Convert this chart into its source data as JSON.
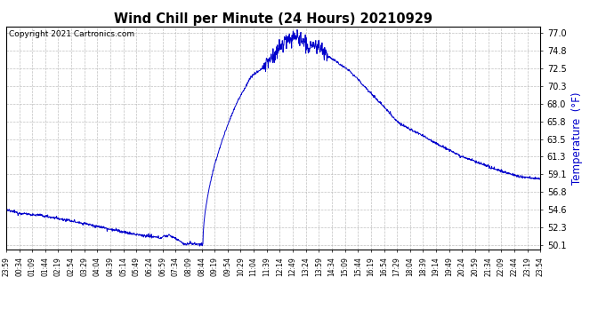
{
  "title": "Wind Chill per Minute (24 Hours) 20210929",
  "ylabel": "Temperature  (°F)",
  "copyright_text": "Copyright 2021 Cartronics.com",
  "line_color": "#0000cc",
  "ylabel_color": "#0000cc",
  "background_color": "#ffffff",
  "grid_color": "#b0b0b0",
  "yticks": [
    50.1,
    52.3,
    54.6,
    56.8,
    59.1,
    61.3,
    63.5,
    65.8,
    68.0,
    70.3,
    72.5,
    74.8,
    77.0
  ],
  "ylim": [
    49.5,
    77.8
  ],
  "xtick_labels": [
    "23:59",
    "00:34",
    "01:09",
    "01:44",
    "02:19",
    "02:54",
    "03:29",
    "04:04",
    "04:39",
    "05:14",
    "05:49",
    "06:24",
    "06:59",
    "07:34",
    "08:09",
    "08:44",
    "09:19",
    "09:54",
    "10:29",
    "11:04",
    "11:39",
    "12:14",
    "12:49",
    "13:24",
    "13:59",
    "14:34",
    "15:09",
    "15:44",
    "16:19",
    "16:54",
    "17:29",
    "18:04",
    "18:39",
    "19:14",
    "19:49",
    "20:24",
    "20:59",
    "21:34",
    "22:09",
    "22:44",
    "23:19",
    "23:54"
  ]
}
